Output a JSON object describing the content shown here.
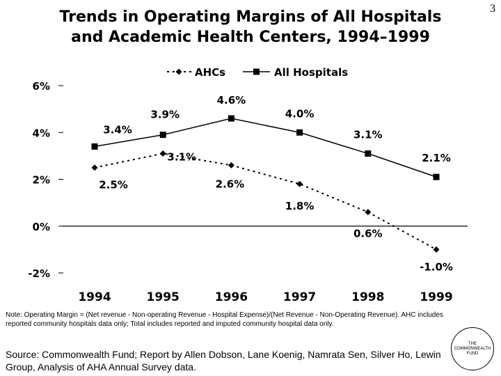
{
  "page_number": "3",
  "title_lines": [
    "Trends in Operating Margins of All Hospitals",
    "and Academic Health Centers, 1994–1999"
  ],
  "chart_data": {
    "type": "line",
    "categories": [
      "1994",
      "1995",
      "1996",
      "1997",
      "1998",
      "1999"
    ],
    "series": [
      {
        "name": "AHCs",
        "values": [
          2.5,
          3.1,
          2.6,
          1.8,
          0.6,
          -1.0
        ],
        "labels": [
          "2.5%",
          "3.1%",
          "2.6%",
          "1.8%",
          "0.6%",
          "-1.0%"
        ],
        "style": "dotted",
        "marker": "diamond",
        "color": "#000000"
      },
      {
        "name": "All Hospitals",
        "values": [
          3.4,
          3.9,
          4.6,
          4.0,
          3.1,
          2.1
        ],
        "labels": [
          "3.4%",
          "3.9%",
          "4.6%",
          "4.0%",
          "3.1%",
          "2.1%"
        ],
        "style": "solid",
        "marker": "square",
        "color": "#000000"
      }
    ],
    "yticks": [
      "-2%",
      "0%",
      "2%",
      "4%",
      "6%"
    ],
    "ytick_values": [
      -2,
      0,
      2,
      4,
      6
    ],
    "ylim": [
      -2,
      6
    ],
    "grid": false,
    "legend_position": "top"
  },
  "note": "Note: Operating Margin = (Net revenue - Non-operating Revenue - Hospital Expense)/(Net Revenue - Non-Operating Revenue). AHC includes reported community hospitals data only; Total includes reported and imputed community hospital data only.",
  "source": "Source: Commonwealth Fund; Report by Allen Dobson, Lane Koenig, Namrata Sen, Silver Ho, Lewin Group, Analysis of AHA Annual Survey data.",
  "logo": {
    "line1": "THE",
    "line2": "COMMONWEALTH",
    "line3": "FUND"
  }
}
